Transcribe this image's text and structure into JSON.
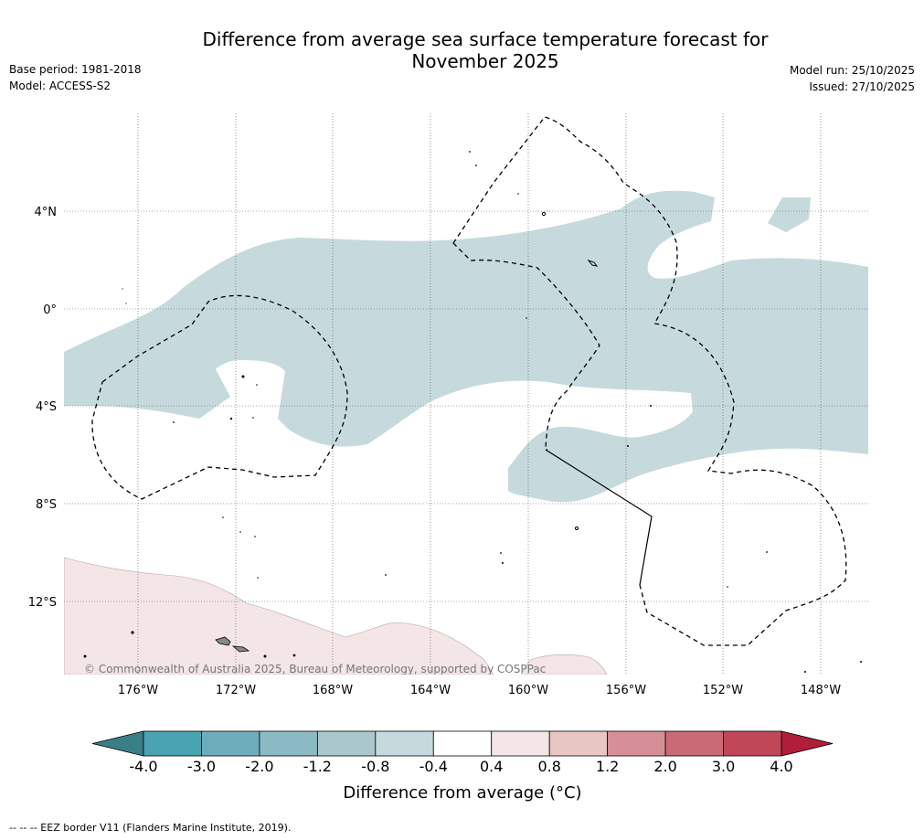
{
  "title": {
    "line1": "Difference from average sea surface temperature forecast for",
    "line2": "November 2025"
  },
  "meta": {
    "base_period": "Base period: 1981-2018",
    "model": "Model: ACCESS-S2",
    "model_run": "Model run: 25/10/2025",
    "issued": "Issued: 27/10/2025"
  },
  "map": {
    "lat_labels": [
      "4°N",
      "0°",
      "4°S",
      "8°S",
      "12°S"
    ],
    "lon_labels": [
      "176°W",
      "172°W",
      "168°W",
      "164°W",
      "160°W",
      "156°W",
      "152°W",
      "148°W"
    ],
    "copyright": "© Commonwealth of Australia 2025, Bureau of Meteorology, supported by COSPPac"
  },
  "colorbar": {
    "title": "Difference from average (°C)",
    "tick_labels": [
      "-4.0",
      "-3.0",
      "-2.0",
      "-1.2",
      "-0.8",
      "-0.4",
      "0.4",
      "0.8",
      "1.2",
      "2.0",
      "3.0",
      "4.0"
    ],
    "colors": [
      "#4aa3b3",
      "#6eaebc",
      "#8cbac4",
      "#a9c7cc",
      "#c6dadd",
      "#ffffff",
      "#f4e5e6",
      "#e8c6c4",
      "#d78f97",
      "#c96a76",
      "#c04757"
    ],
    "low_extend_color": "#3a7f85",
    "high_extend_color": "#b01e3a"
  },
  "footer": "--  --  -- EEZ border V11 (Flanders Marine Institute, 2019)."
}
